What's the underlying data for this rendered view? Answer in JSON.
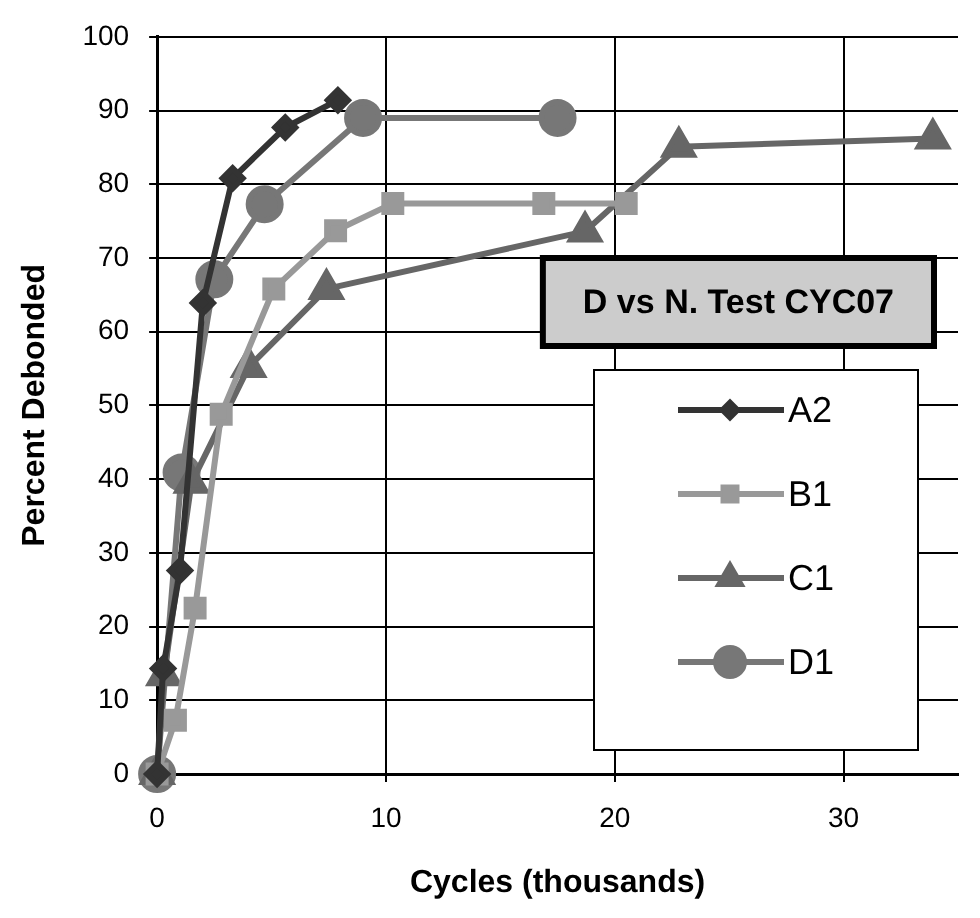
{
  "chart_data": {
    "type": "line",
    "title": "D vs N. Test CYC07",
    "xlabel": "Cycles (thousands)",
    "ylabel": "Percent Debonded",
    "xlim": [
      0,
      35
    ],
    "xticks": [
      0,
      10,
      20,
      30
    ],
    "ylim": [
      0,
      100
    ],
    "yticks": [
      0,
      10,
      20,
      30,
      40,
      50,
      60,
      70,
      80,
      90,
      100
    ],
    "grid": true,
    "legend": "bottom right",
    "series": [
      {
        "name": "A2",
        "color": "#333333",
        "marker": "diamond",
        "x": [
          0,
          0.26,
          1.0,
          2.0,
          3.3,
          5.6,
          7.9
        ],
        "values": [
          0,
          14.3,
          27.6,
          63.9,
          80.8,
          87.7,
          91.4
        ]
      },
      {
        "name": "B1",
        "color": "#999999",
        "marker": "square",
        "x": [
          0,
          0.8,
          1.66,
          2.8,
          5.1,
          7.8,
          10.3,
          16.9,
          20.5
        ],
        "values": [
          0,
          7.3,
          22.5,
          48.8,
          65.8,
          73.7,
          77.4,
          77.4,
          77.4
        ]
      },
      {
        "name": "C1",
        "color": "#666666",
        "marker": "triangle",
        "x": [
          0,
          0.3,
          1.5,
          4.0,
          7.4,
          18.7,
          22.8,
          33.9
        ],
        "values": [
          0,
          13.4,
          39.5,
          55.2,
          65.8,
          73.6,
          85.1,
          86.2
        ]
      },
      {
        "name": "D1",
        "color": "#777777",
        "marker": "circle",
        "x": [
          0,
          1.07,
          2.5,
          4.7,
          9.0,
          17.5
        ],
        "values": [
          0,
          40.9,
          67.1,
          77.3,
          89,
          89
        ]
      }
    ]
  }
}
